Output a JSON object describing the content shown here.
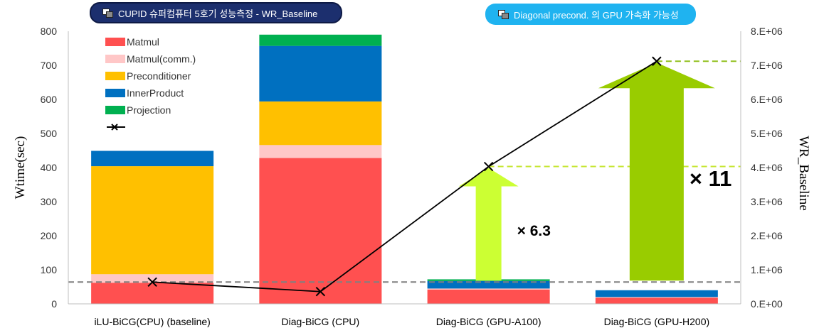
{
  "badges": {
    "left": "CUPID 슈퍼컴퓨터 5호기 성능측정 - WR_Baseline",
    "right": "Diagonal precond. 의 GPU 가속화 가능성"
  },
  "chart_data": {
    "type": "bar",
    "stacked": true,
    "categories": [
      "iLU-BiCG(CPU) (baseline)",
      "Diag-BiCG (CPU)",
      "Diag-BiCG (GPU-A100)",
      "Diag-BiCG (GPU-H200)"
    ],
    "series": [
      {
        "name": "Matmul",
        "color": "#ff5050",
        "values": [
          62,
          428,
          42,
          18
        ]
      },
      {
        "name": "Matmul(comm.)",
        "color": "#ffc7c7",
        "values": [
          25,
          38,
          3,
          2
        ]
      },
      {
        "name": "Preconditioner",
        "color": "#ffc000",
        "values": [
          317,
          128,
          0,
          0
        ]
      },
      {
        "name": "InnerProduct",
        "color": "#0070c0",
        "values": [
          45,
          163,
          22,
          20
        ]
      },
      {
        "name": "Projection",
        "color": "#00b050",
        "values": [
          0,
          33,
          5,
          0
        ]
      }
    ],
    "line_series": {
      "name": "",
      "axis": "right",
      "color": "#000000",
      "marker": "x",
      "values": [
        640000,
        360000,
        4030000,
        7120000
      ]
    },
    "ylabel": "Wtime(sec)",
    "y2label": "WR_Baseline",
    "ylim": [
      0,
      800
    ],
    "yticks": [
      "0",
      "100",
      "200",
      "300",
      "400",
      "500",
      "600",
      "700",
      "800"
    ],
    "y2lim": [
      0,
      8000000
    ],
    "y2ticks": [
      "0.E+00",
      "1.E+06",
      "2.E+06",
      "3.E+06",
      "4.E+06",
      "5.E+06",
      "6.E+06",
      "7.E+06",
      "8.E+06"
    ],
    "grid": false,
    "legend_position": "top-left",
    "reference_lines": [
      {
        "value": 640000,
        "axis": "right",
        "color": "#808080",
        "style": "dashed"
      },
      {
        "value": 4030000,
        "axis": "right",
        "color": "#c6e633",
        "style": "dashed",
        "from_category": 2
      },
      {
        "value": 7120000,
        "axis": "right",
        "color": "#92c01f",
        "style": "dashed",
        "from_category": 3
      }
    ],
    "annotations": [
      {
        "text": "× 6.3",
        "category": 2,
        "from": 640000,
        "to": 4030000,
        "color": "#ccff33"
      },
      {
        "text": "× 11",
        "category": 3,
        "from": 640000,
        "to": 7120000,
        "color": "#99cc00"
      }
    ]
  }
}
